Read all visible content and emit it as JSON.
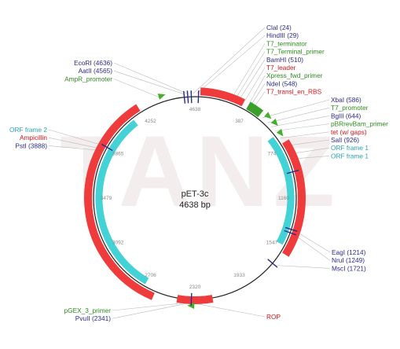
{
  "plasmid": {
    "name": "pET-3c",
    "size_label": "4638 bp",
    "watermark": "TANZ"
  },
  "colors": {
    "enzyme": "#2b2b88",
    "feature_green": "#2e8b1f",
    "feature_red": "#d0141a",
    "orf": "#2aa3b8",
    "red_arc": "#ef3b3b",
    "cyan_arc": "#43d3d6",
    "green_arrow": "#43b02a"
  },
  "ticks": [
    "4638",
    "387",
    "774",
    "1160",
    "1547",
    "1933",
    "2320",
    "2706",
    "3092",
    "3479",
    "3865",
    "4252"
  ],
  "labels_right": [
    {
      "text": "ClaI (24)",
      "color": "enzyme"
    },
    {
      "text": "HindIII (29)",
      "color": "enzyme"
    },
    {
      "text": "T7_terminator",
      "color": "feature_green"
    },
    {
      "text": "T7_Terminal_primer",
      "color": "feature_green"
    },
    {
      "text": "BamHI (510)",
      "color": "enzyme"
    },
    {
      "text": "T7_leader",
      "color": "feature_red"
    },
    {
      "text": "Xpress_fwd_primer",
      "color": "feature_green"
    },
    {
      "text": "NdeI (548)",
      "color": "enzyme"
    },
    {
      "text": "T7_transl_en_RBS",
      "color": "feature_red"
    }
  ],
  "labels_right_mid": [
    {
      "text": "XbaI (586)",
      "color": "enzyme"
    },
    {
      "text": "T7_promoter",
      "color": "feature_green"
    },
    {
      "text": "BglII (644)",
      "color": "enzyme"
    },
    {
      "text": "pBRrevBam_primer",
      "color": "feature_green"
    },
    {
      "text": "tet (w/ gaps)",
      "color": "feature_red"
    },
    {
      "text": "SalI (926)",
      "color": "enzyme"
    },
    {
      "text": "ORF frame 1",
      "color": "orf"
    },
    {
      "text": "ORF frame 1",
      "color": "orf"
    }
  ],
  "labels_right_low": [
    {
      "text": "EagI (1214)",
      "color": "enzyme"
    },
    {
      "text": "NruI (1249)",
      "color": "enzyme"
    },
    {
      "text": "MscI (1721)",
      "color": "enzyme"
    }
  ],
  "labels_left_top": [
    {
      "text": "EcoRI (4636)",
      "color": "enzyme"
    },
    {
      "text": "AatII (4565)",
      "color": "enzyme"
    },
    {
      "text": "AmpR_promoter",
      "color": "feature_green"
    }
  ],
  "labels_left_mid": [
    {
      "text": "ORF frame 2",
      "color": "orf"
    },
    {
      "text": "Ampicillin",
      "color": "feature_red"
    },
    {
      "text": "PstI (3888)",
      "color": "enzyme"
    }
  ],
  "labels_left_bottom": [
    {
      "text": "pGEX_3_primer",
      "color": "feature_green"
    },
    {
      "text": "PvuII (2341)",
      "color": "enzyme"
    }
  ],
  "label_rop": {
    "text": "ROP",
    "color": "feature_red"
  }
}
